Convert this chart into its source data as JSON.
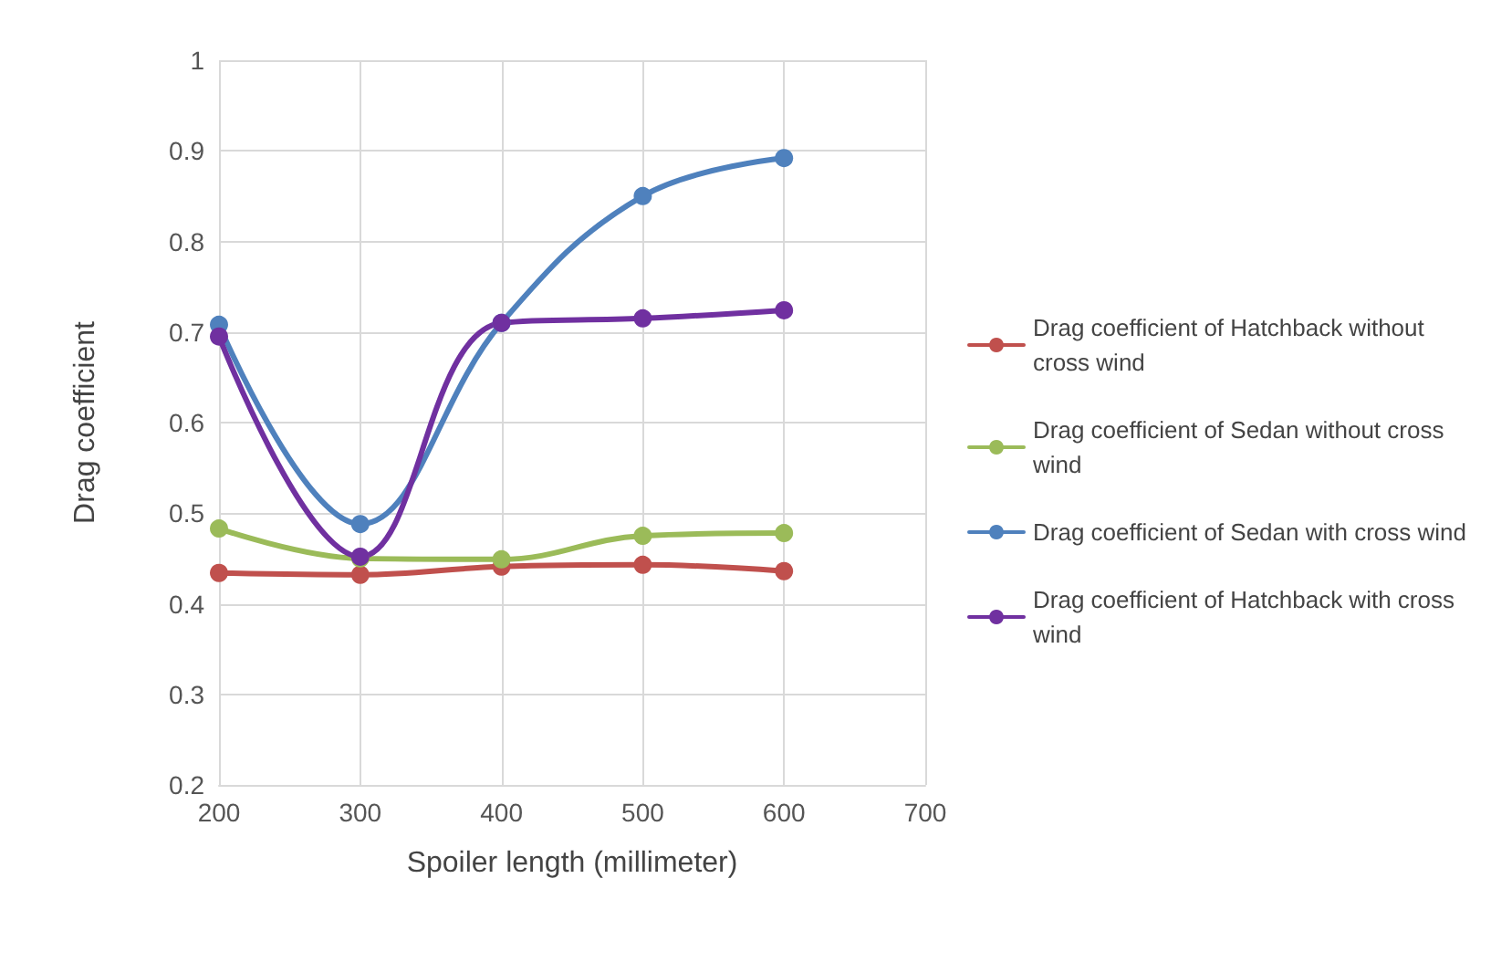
{
  "chart_data": {
    "type": "line",
    "xlabel": "Spoiler length (millimeter)",
    "ylabel": "Drag coefficient",
    "x": [
      200,
      300,
      400,
      500,
      600
    ],
    "series": [
      {
        "name": "Drag coefficient of Hatchback without cross wind",
        "color": "#c0504d",
        "values": [
          0.434,
          0.432,
          0.441,
          0.443,
          0.436
        ]
      },
      {
        "name": "Drag coefficient of Sedan without cross wind",
        "color": "#9bbb59",
        "values": [
          0.483,
          0.45,
          0.449,
          0.475,
          0.478
        ]
      },
      {
        "name": "Drag coefficient of Sedan with cross wind",
        "color": "#4f81bd",
        "values": [
          0.708,
          0.488,
          0.71,
          0.85,
          0.892
        ]
      },
      {
        "name": "Drag coefficient of Hatchback with cross wind",
        "color": "#7030a0",
        "values": [
          0.695,
          0.452,
          0.71,
          0.715,
          0.724
        ]
      }
    ],
    "xlim": [
      200,
      700
    ],
    "xticks": [
      200,
      300,
      400,
      500,
      600,
      700
    ],
    "ylim": [
      0.2,
      1
    ],
    "yticks": [
      0.2,
      0.3,
      0.4,
      0.5,
      0.6,
      0.7,
      0.8,
      0.9,
      1
    ],
    "grid": true,
    "legend": "right",
    "marker": "circle",
    "line_style": "solid"
  }
}
